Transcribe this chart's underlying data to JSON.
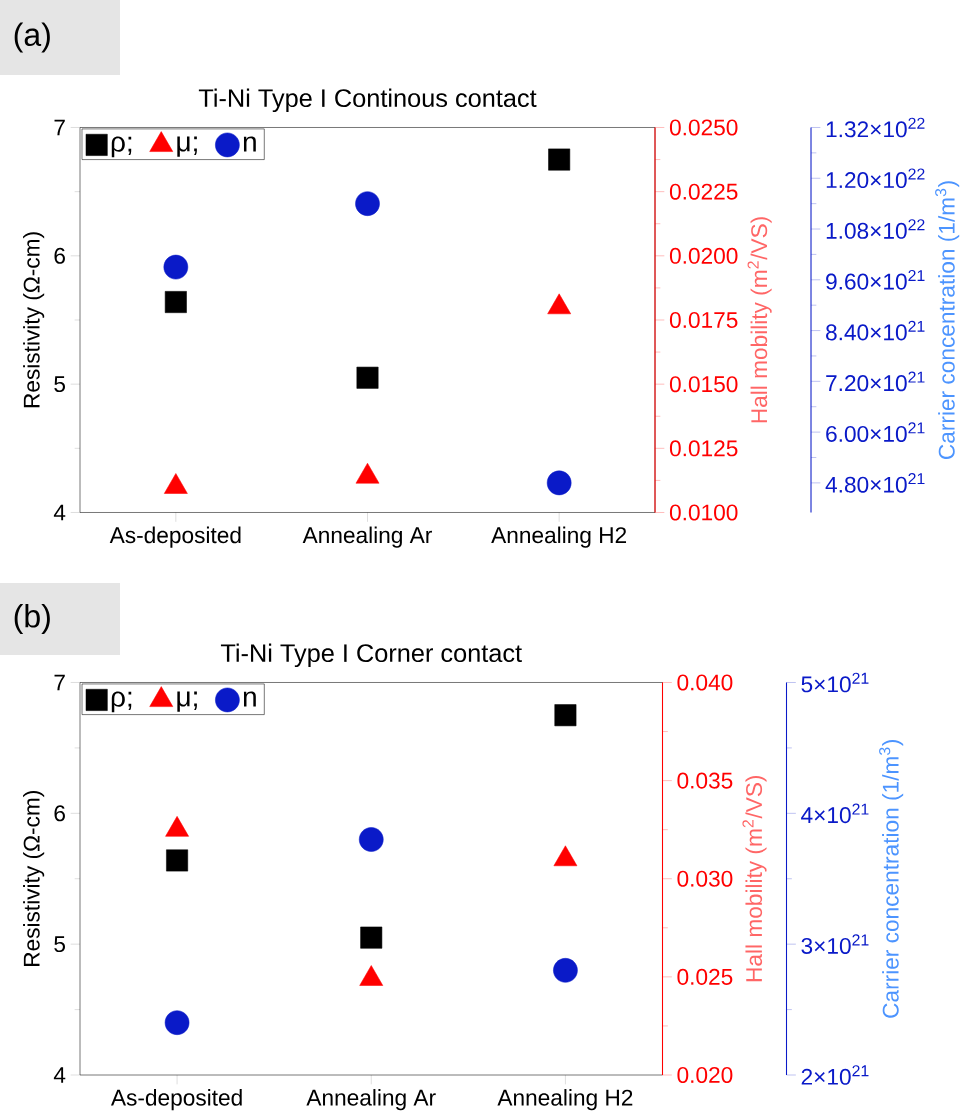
{
  "chart_data": [
    {
      "type": "scatter",
      "title": "Ti-Ni Type I Continous contact",
      "annotations": [
        "(a)"
      ],
      "categories": [
        "As-deposited",
        "Annealing Ar",
        "Annealing H2"
      ],
      "ylabel": "Resistivity (Ω-cm)",
      "y2label": "Hall mobility (m$^{2}$/VS)",
      "y3label": "Carrier concentration (1/m$^{3}$)",
      "ylim": [
        4,
        7
      ],
      "yticks": [
        4,
        5,
        6,
        7
      ],
      "y2lim": [
        0.01,
        0.025
      ],
      "y2ticks": [
        {
          "value": 0.01,
          "label": "0.0100"
        },
        {
          "value": 0.0125,
          "label": "0.0125"
        },
        {
          "value": 0.015,
          "label": "0.0150"
        },
        {
          "value": 0.0175,
          "label": "0.0175"
        },
        {
          "value": 0.02,
          "label": "0.0200"
        },
        {
          "value": 0.0225,
          "label": "0.0225"
        },
        {
          "value": 0.025,
          "label": "0.0250"
        }
      ],
      "y3lim": [
        4.1e+21,
        1.32e+22
      ],
      "y3ticks": [
        {
          "value": 4.8e+21,
          "label": "4.80×10$^{21}$"
        },
        {
          "value": 6e+21,
          "label": "6.00×10$^{21}$"
        },
        {
          "value": 7.2e+21,
          "label": "7.20×10$^{21}$"
        },
        {
          "value": 8.4e+21,
          "label": "8.40×10$^{21}$"
        },
        {
          "value": 9.6e+21,
          "label": "9.60×10$^{21}$"
        },
        {
          "value": 1.08e+22,
          "label": "1.08×10$^{22}$"
        },
        {
          "value": 1.2e+22,
          "label": "1.20×10$^{22}$"
        },
        {
          "value": 1.32e+22,
          "label": "1.32×10$^{22}$"
        }
      ],
      "legend": "top left",
      "series": [
        {
          "name": "ρ;",
          "color": "#000000",
          "marker": "square",
          "axis": "y",
          "values": [
            5.64,
            5.05,
            6.75
          ]
        },
        {
          "name": "μ;",
          "color": "#ff0000",
          "marker": "triangle",
          "axis": "y2",
          "values": [
            0.011,
            0.0114,
            0.018
          ]
        },
        {
          "name": "n",
          "color": "#0a1ac8",
          "marker": "circle",
          "axis": "y3",
          "values": [
            9.9e+21,
            1.14e+22,
            4.8e+21
          ]
        }
      ]
    },
    {
      "type": "scatter",
      "title": "Ti-Ni Type I Corner contact",
      "annotations": [
        "(b)"
      ],
      "categories": [
        "As-deposited",
        "Annealing Ar",
        "Annealing H2"
      ],
      "ylabel": "Resistivity (Ω-cm)",
      "y2label": "Hall mobility (m$^{2}$/VS)",
      "y3label": "Carrier concentration (1/m$^{3}$)",
      "ylim": [
        4,
        7
      ],
      "yticks": [
        4,
        5,
        6,
        7
      ],
      "y2lim": [
        0.02,
        0.04
      ],
      "y2ticks": [
        {
          "value": 0.02,
          "label": "0.020"
        },
        {
          "value": 0.025,
          "label": "0.025"
        },
        {
          "value": 0.03,
          "label": "0.030"
        },
        {
          "value": 0.035,
          "label": "0.035"
        },
        {
          "value": 0.04,
          "label": "0.040"
        }
      ],
      "y3lim": [
        2e+21,
        5e+21
      ],
      "y3ticks": [
        {
          "value": 2e+21,
          "label": "2×10$^{21}$"
        },
        {
          "value": 3e+21,
          "label": "3×10$^{21}$"
        },
        {
          "value": 4e+21,
          "label": "4×10$^{21}$"
        },
        {
          "value": 5e+21,
          "label": "5×10$^{21}$"
        }
      ],
      "legend": "top left",
      "series": [
        {
          "name": "ρ;",
          "color": "#000000",
          "marker": "square",
          "axis": "y",
          "values": [
            5.64,
            5.05,
            6.75
          ]
        },
        {
          "name": "μ;",
          "color": "#ff0000",
          "marker": "triangle",
          "axis": "y2",
          "values": [
            0.0325,
            0.0249,
            0.031
          ]
        },
        {
          "name": "n",
          "color": "#0a1ac8",
          "marker": "circle",
          "axis": "y3",
          "values": [
            2.4e+21,
            3.8e+21,
            2.8e+21
          ]
        }
      ]
    }
  ]
}
